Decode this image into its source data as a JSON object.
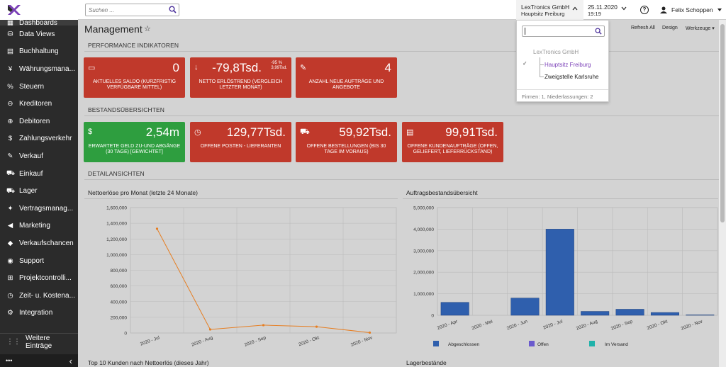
{
  "topbar": {
    "search_placeholder": "Suchen ...",
    "company_name": "LexTronics GmbH",
    "company_branch": "Hauptsitz Freiburg",
    "date": "25.11.2020",
    "time": "19:19",
    "user_name": "Felix Schoppen"
  },
  "sidebar": {
    "active_label": "Dashboards",
    "items": [
      {
        "label": "Data Views",
        "icon": "database-icon",
        "glyph": "⛁"
      },
      {
        "label": "Buchhaltung",
        "icon": "ledger-icon",
        "glyph": "▤"
      },
      {
        "label": "Währungsmana...",
        "icon": "currency-icon",
        "glyph": "¥"
      },
      {
        "label": "Steuern",
        "icon": "percent-icon",
        "glyph": "%"
      },
      {
        "label": "Kreditoren",
        "icon": "minus-circle-icon",
        "glyph": "⊖"
      },
      {
        "label": "Debitoren",
        "icon": "plus-circle-icon",
        "glyph": "⊕"
      },
      {
        "label": "Zahlungsverkehr",
        "icon": "dollar-icon",
        "glyph": "$"
      },
      {
        "label": "Verkauf",
        "icon": "edit-icon",
        "glyph": "✎"
      },
      {
        "label": "Einkauf",
        "icon": "cart-icon",
        "glyph": "⛟"
      },
      {
        "label": "Lager",
        "icon": "truck-icon",
        "glyph": "⛟"
      },
      {
        "label": "Vertragsmanag...",
        "icon": "handshake-icon",
        "glyph": "✦"
      },
      {
        "label": "Marketing",
        "icon": "megaphone-icon",
        "glyph": "◀"
      },
      {
        "label": "Verkaufschancen",
        "icon": "tag-icon",
        "glyph": "◆"
      },
      {
        "label": "Support",
        "icon": "support-icon",
        "glyph": "◉"
      },
      {
        "label": "Projektcontrolli...",
        "icon": "sitemap-icon",
        "glyph": "⊞"
      },
      {
        "label": "Zeit- u. Kostena...",
        "icon": "stopwatch-icon",
        "glyph": "◷"
      },
      {
        "label": "Integration",
        "icon": "integration-icon",
        "glyph": "⚙"
      }
    ],
    "more_label": "Weitere Einträge",
    "bottom_dots": "•••",
    "collapse": "‹"
  },
  "page": {
    "title": "Management",
    "star": "☆",
    "refresh_label": "Refresh All",
    "design_label": "Design",
    "tools_label": "Werkzeuge"
  },
  "sections": {
    "kpi": "PERFORMANCE INDIKATOREN",
    "stock": "BESTANDSÜBERSICHTEN",
    "detail": "DETAILANSICHTEN"
  },
  "kpi_tiles": [
    {
      "value": "0",
      "label": "AKTUELLES SALDO (KURZFRISTIG VERFÜGBARE MITTEL)",
      "icon": "card-icon",
      "glyph": "▭"
    },
    {
      "value": "-79,8Tsd.",
      "sub1": "-95 %",
      "sub2": "3,99Tsd.",
      "label": "NETTO ERLÖSTREND (VERGLEICH LETZTER MONAT)",
      "icon": "arrow-down-icon",
      "glyph": "↓"
    },
    {
      "value": "4",
      "label": "ANZAHL NEUE AUFTRÄGE UND ANGEBOTE",
      "icon": "edit-icon",
      "glyph": "✎"
    }
  ],
  "stock_tiles": [
    {
      "value": "2,54m",
      "label": "ERWARTETE GELD ZU-UND ABGÄNGE (30 TAGE) [GEWICHTET]",
      "icon": "dollar-box-icon",
      "glyph": "$",
      "color": "#2e9e3f"
    },
    {
      "value": "129,77Tsd.",
      "label": "OFFENE POSTEN - LIEFERANTEN",
      "icon": "clock-icon",
      "glyph": "◷",
      "color": "#c0392b"
    },
    {
      "value": "59,92Tsd.",
      "label": "OFFENE BESTELLUNGEN (BIS 30 TAGE IM VORAUS)",
      "icon": "cart-icon",
      "glyph": "⛟",
      "color": "#c0392b"
    },
    {
      "value": "99,91Tsd.",
      "label": "OFFENE KUNDENAUFTRÄGE (OFFEN, GELIEFERT, LIEFERRÜCKSTAND)",
      "icon": "document-icon",
      "glyph": "▤",
      "color": "#c0392b"
    }
  ],
  "chart_titles": {
    "left": "Nettoerlöse pro Monat (letzte 24 Monate)",
    "right": "Auftragsbestandsübersicht",
    "bottom_left": "Top 10 Kunden nach Nettoerlös (dieses Jahr)",
    "bottom_right": "Lagerbestände"
  },
  "dropdown": {
    "group": "LexTronics GmbH",
    "check": "✓",
    "branch_selected": "Hauptsitz Freiburg",
    "branch_other": "Zweigstelle Karlsruhe",
    "footer": "Firmen: 1, Niederlassungen: 2"
  },
  "chart_data": [
    {
      "type": "line",
      "title": "Nettoerlöse pro Monat (letzte 24 Monate)",
      "categories": [
        "2020 - Jul",
        "2020 - Aug",
        "2020 - Sep",
        "2020 - Okt",
        "2020 - Nov"
      ],
      "values": [
        1330000,
        45000,
        100000,
        80000,
        5000
      ],
      "ylim": [
        0,
        1600000
      ],
      "yticks": [
        "0",
        "200,000",
        "400,000",
        "600,000",
        "800,000",
        "1,000,000",
        "1,200,000",
        "1,400,000",
        "1,600,000"
      ],
      "color": "#e67e22",
      "grid": true
    },
    {
      "type": "bar",
      "title": "Auftragsbestandsübersicht",
      "categories": [
        "2020 - Apr",
        "2020 - Mai",
        "2020 - Jun",
        "2020 - Jul",
        "2020 - Aug",
        "2020 - Sep",
        "2020 - Okt",
        "2020 - Nov"
      ],
      "series": [
        {
          "name": "Abgeschlossen",
          "color": "#2f5fad",
          "values": [
            600000,
            0,
            800000,
            4000000,
            180000,
            280000,
            130000,
            20000
          ]
        },
        {
          "name": "Offen",
          "color": "#6a5acd",
          "values": [
            0,
            0,
            0,
            0,
            0,
            0,
            0,
            0
          ]
        },
        {
          "name": "Im Versand",
          "color": "#20b2aa",
          "values": [
            0,
            0,
            0,
            0,
            0,
            0,
            0,
            0
          ]
        }
      ],
      "ylim": [
        0,
        5000000
      ],
      "yticks": [
        "0",
        "1,000,000",
        "2,000,000",
        "3,000,000",
        "4,000,000",
        "5,000,000"
      ],
      "grid": true,
      "legend": "bottom"
    }
  ]
}
